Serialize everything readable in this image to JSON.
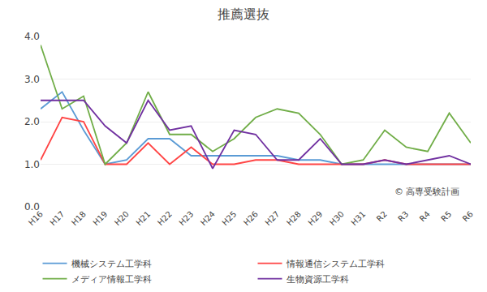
{
  "chart_data": {
    "type": "line",
    "title": "推薦選抜",
    "categories": [
      "H16",
      "H17",
      "H18",
      "H19",
      "H20",
      "H21",
      "H22",
      "H23",
      "H24",
      "H25",
      "H26",
      "H27",
      "H28",
      "H29",
      "H30",
      "H31",
      "R2",
      "R3",
      "R4",
      "R5",
      "R6"
    ],
    "series": [
      {
        "name": "機械システム工学科",
        "color": "#5B9BD5",
        "values": [
          2.3,
          2.7,
          1.8,
          1.0,
          1.1,
          1.6,
          1.6,
          1.2,
          1.2,
          1.2,
          1.2,
          1.2,
          1.1,
          1.1,
          1.0,
          1.0,
          1.0,
          1.0,
          1.0,
          1.0,
          1.0
        ]
      },
      {
        "name": "情報通信システム工学科",
        "color": "#FF4444",
        "values": [
          1.1,
          2.1,
          2.0,
          1.0,
          1.0,
          1.5,
          1.0,
          1.4,
          1.0,
          1.0,
          1.1,
          1.1,
          1.0,
          1.0,
          1.0,
          1.0,
          1.1,
          1.0,
          1.0,
          1.0,
          1.0
        ]
      },
      {
        "name": "メディア情報工学科",
        "color": "#70AD47",
        "values": [
          3.8,
          2.3,
          2.6,
          1.0,
          1.5,
          2.7,
          1.7,
          1.7,
          1.3,
          1.6,
          2.1,
          2.3,
          2.2,
          1.7,
          1.0,
          1.1,
          1.8,
          1.4,
          1.3,
          2.2,
          1.5
        ]
      },
      {
        "name": "生物資源工学科",
        "color": "#7030A0",
        "values": [
          2.5,
          2.5,
          2.5,
          1.9,
          1.5,
          2.5,
          1.8,
          1.9,
          0.9,
          1.8,
          1.7,
          1.1,
          1.1,
          1.6,
          1.0,
          1.0,
          1.1,
          1.0,
          1.1,
          1.2,
          1.0
        ]
      }
    ],
    "ylim": [
      0,
      4.0
    ],
    "yticks": [
      {
        "value": 0.0,
        "label": "0.0"
      },
      {
        "value": 1.0,
        "label": "1.0"
      },
      {
        "value": 2.0,
        "label": "2.0"
      },
      {
        "value": 3.0,
        "label": "3.0"
      },
      {
        "value": 4.0,
        "label": "4.0"
      }
    ],
    "grid": true,
    "legend": "bottom",
    "annotations": [
      "© 高専受験計画"
    ]
  }
}
